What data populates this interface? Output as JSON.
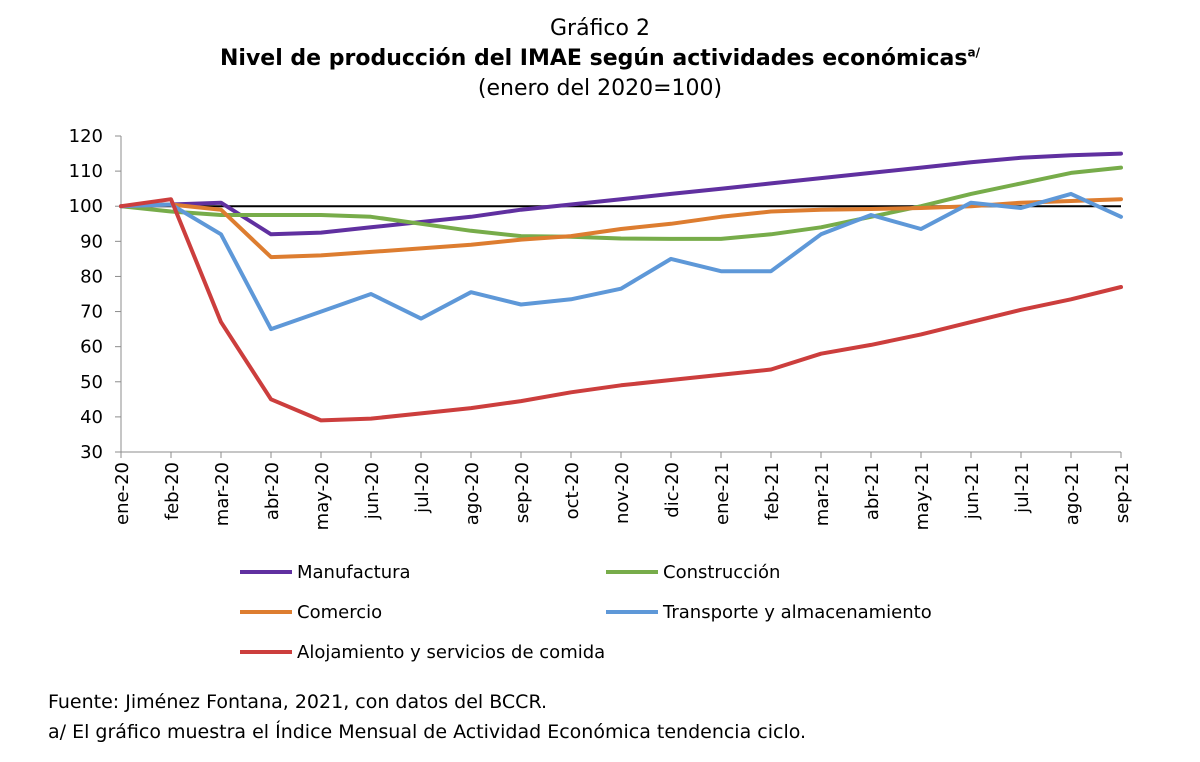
{
  "chart_data": {
    "type": "line",
    "title_line1": "Gráfico 2",
    "title": "Nivel de producción del IMAE según actividades económicas",
    "title_footnote_mark": "a/",
    "subtitle": "(enero del 2020=100)",
    "xlabel": "",
    "ylabel": "",
    "ylim": [
      30,
      120
    ],
    "yticks": [
      30,
      40,
      50,
      60,
      70,
      80,
      90,
      100,
      110,
      120
    ],
    "reference_line": 100,
    "categories": [
      "ene-20",
      "feb-20",
      "mar-20",
      "abr-20",
      "may-20",
      "jun-20",
      "jul-20",
      "ago-20",
      "sep-20",
      "oct-20",
      "nov-20",
      "dic-20",
      "ene-21",
      "feb-21",
      "mar-21",
      "abr-21",
      "may-21",
      "jun-21",
      "jul-21",
      "ago-21",
      "sep-21"
    ],
    "legend_position": "bottom",
    "series": [
      {
        "name": "Manufactura",
        "color": "#6030a0",
        "values": [
          100,
          100.5,
          101,
          92,
          92.5,
          94,
          95.5,
          97,
          99,
          100.5,
          102,
          103.5,
          105,
          106.5,
          108,
          109.5,
          111,
          112.5,
          113.8,
          114.5,
          115
        ]
      },
      {
        "name": "Construcción",
        "color": "#77ac4a",
        "values": [
          100,
          98.5,
          97.5,
          97.5,
          97.5,
          97,
          95,
          93,
          91.5,
          91.3,
          90.8,
          90.7,
          90.7,
          92,
          94,
          97,
          100,
          103.5,
          106.5,
          109.5,
          111
        ]
      },
      {
        "name": "Comercio",
        "color": "#dd7d30",
        "values": [
          100,
          100.5,
          99,
          85.5,
          86,
          87,
          88,
          89,
          90.5,
          91.5,
          93.5,
          95,
          97,
          98.5,
          99,
          99.2,
          99.5,
          100,
          101,
          101.5,
          102
        ]
      },
      {
        "name": "Transporte y almacenamiento",
        "color": "#5e98d8",
        "values": [
          100,
          100.5,
          92,
          65,
          70,
          75,
          68,
          75.5,
          72,
          73.5,
          76.5,
          85,
          81.5,
          81.5,
          92,
          97.5,
          93.5,
          101,
          99.5,
          103.5,
          97
        ]
      },
      {
        "name": "Alojamiento y servicios de comida",
        "color": "#cc3e3d",
        "values": [
          100,
          102,
          67,
          45,
          39,
          39.5,
          41,
          42.5,
          44.5,
          47,
          49,
          50.5,
          52,
          53.5,
          58,
          60.5,
          63.5,
          67,
          70.5,
          73.5,
          77
        ]
      }
    ]
  },
  "notes": {
    "source": "Fuente: Jiménez Fontana, 2021,  con datos del BCCR.",
    "footnote": "a/ El gráfico muestra el Índice Mensual de Actividad Económica tendencia ciclo."
  }
}
